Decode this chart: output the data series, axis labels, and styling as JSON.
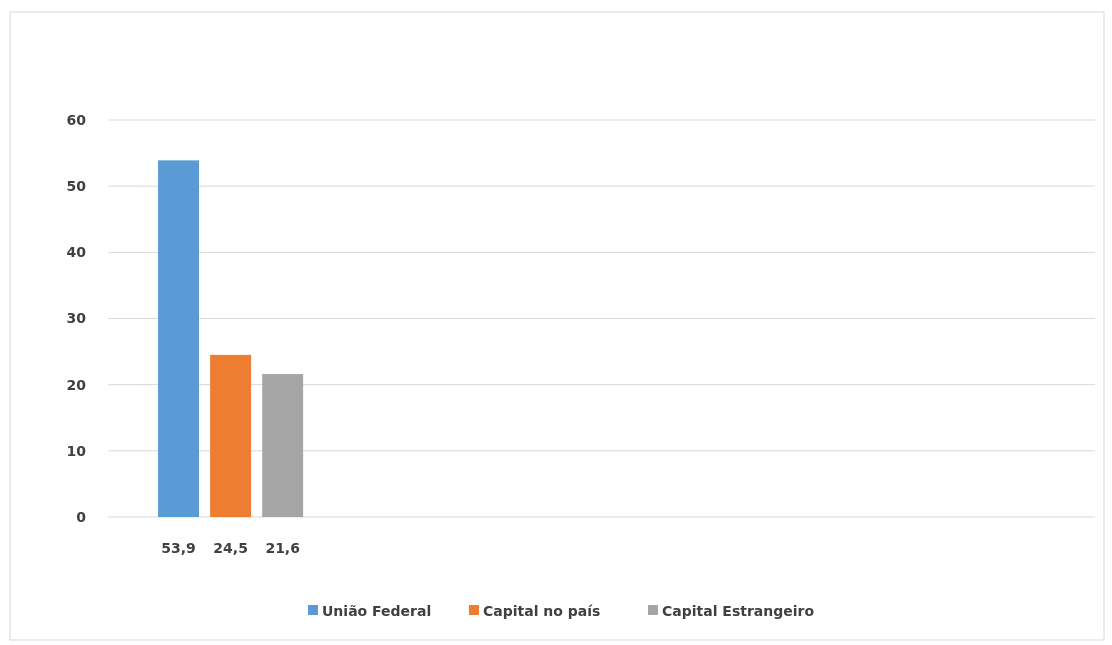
{
  "chart_data": {
    "type": "bar",
    "categories": [
      null
    ],
    "series": [
      {
        "name": "União Federal",
        "color": "#5b9bd5",
        "values": [
          53.9
        ],
        "value_labels": [
          "53,9"
        ]
      },
      {
        "name": "Capital no país",
        "color": "#ed7d31",
        "values": [
          24.5
        ],
        "value_labels": [
          "24,5"
        ]
      },
      {
        "name": "Capital Estrangeiro",
        "color": "#a5a5a5",
        "values": [
          21.6
        ],
        "value_labels": [
          "21,6"
        ]
      }
    ],
    "ylim": [
      0,
      60
    ],
    "yticks": [
      0,
      10,
      20,
      30,
      40,
      50,
      60
    ],
    "grid": "y",
    "legend": "bottom"
  }
}
